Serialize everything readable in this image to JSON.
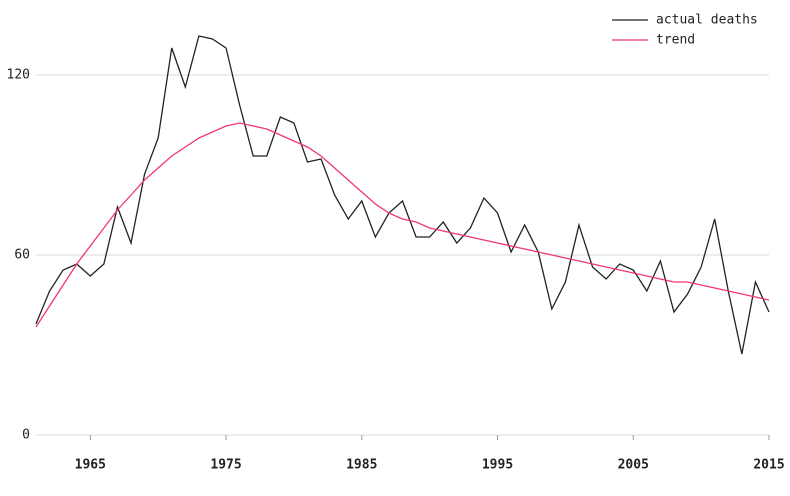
{
  "chart_data": {
    "type": "line",
    "x": [
      1961,
      1962,
      1963,
      1964,
      1965,
      1966,
      1967,
      1968,
      1969,
      1970,
      1971,
      1972,
      1973,
      1974,
      1975,
      1976,
      1977,
      1978,
      1979,
      1980,
      1981,
      1982,
      1983,
      1984,
      1985,
      1986,
      1987,
      1988,
      1989,
      1990,
      1991,
      1992,
      1993,
      1994,
      1995,
      1996,
      1997,
      1998,
      1999,
      2000,
      2001,
      2002,
      2003,
      2004,
      2005,
      2006,
      2007,
      2008,
      2009,
      2010,
      2011,
      2012,
      2013,
      2014,
      2015
    ],
    "series": [
      {
        "name": "actual deaths",
        "color": "#222222",
        "values": [
          37,
          48,
          55,
          57,
          53,
          57,
          76,
          64,
          87,
          99,
          129,
          116,
          133,
          132,
          129,
          110,
          93,
          93,
          106,
          104,
          91,
          92,
          80,
          72,
          78,
          66,
          74,
          78,
          66,
          66,
          71,
          64,
          69,
          79,
          74,
          61,
          70,
          61,
          42,
          51,
          70,
          56,
          52,
          57,
          55,
          48,
          58,
          41,
          47,
          56,
          72,
          48,
          27,
          51,
          41
        ]
      },
      {
        "name": "trend",
        "color": "#f0386b",
        "values": [
          36,
          43,
          50,
          57,
          63,
          69,
          75,
          80,
          85,
          89,
          93,
          96,
          99,
          101,
          103,
          104,
          103,
          102,
          100,
          98,
          96,
          93,
          89,
          85,
          81,
          77,
          74,
          72,
          71,
          69,
          68,
          67,
          66,
          65,
          64,
          63,
          62,
          61,
          60,
          59,
          58,
          57,
          56,
          55,
          54,
          53,
          52,
          51,
          51,
          50,
          49,
          48,
          47,
          46,
          45
        ]
      }
    ],
    "xlim": [
      1961,
      2015
    ],
    "xticks": [
      1965,
      1975,
      1985,
      1995,
      2005,
      2015
    ],
    "ylim": [
      0,
      140
    ],
    "yticks": [
      0,
      60,
      120
    ],
    "grid": true,
    "legend": "top-right"
  }
}
